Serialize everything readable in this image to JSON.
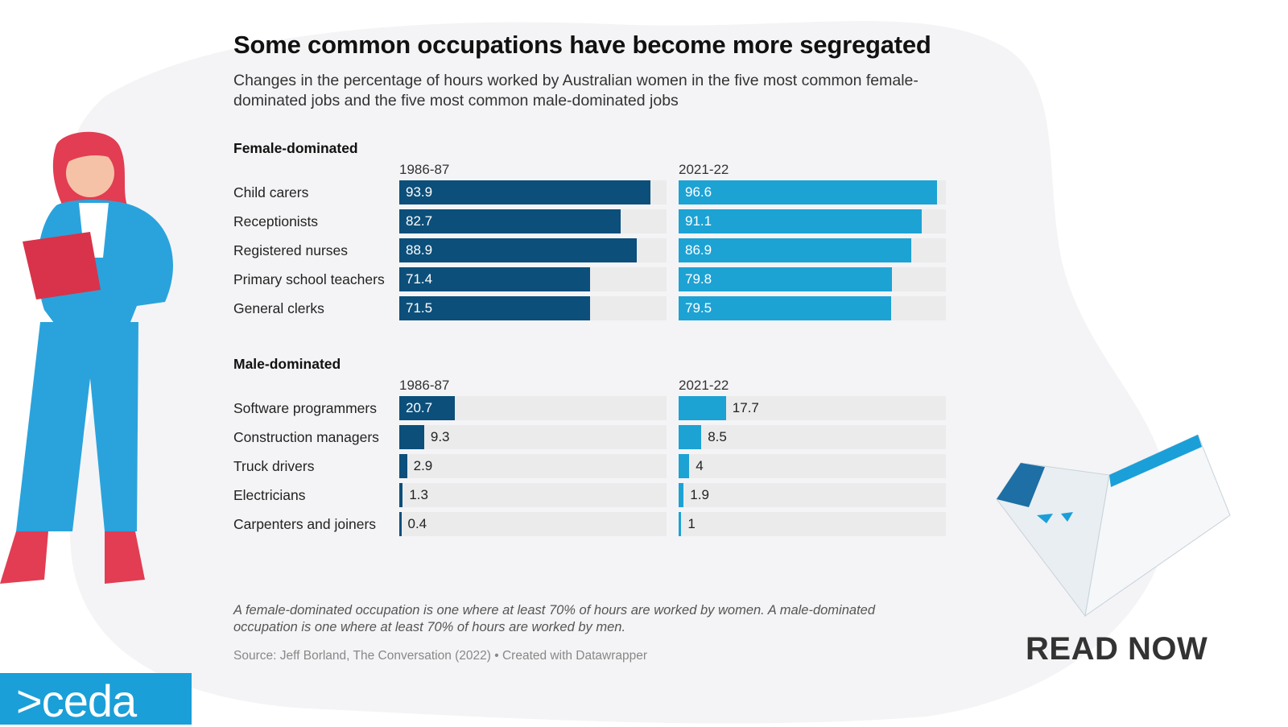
{
  "title": "Some common occupations have become more segregated",
  "subtitle": "Changes in the percentage of hours worked by Australian women in the five most common female-dominated jobs and the five most common male-dominated jobs",
  "footnote": "A female-dominated occupation is one where at least 70% of hours are worked by women. A male-dominated occupation is one where at least 70% of hours are worked by men.",
  "source": "Source: Jeff Borland, The Conversation (2022) • Created with Datawrapper",
  "brand": {
    "logo_text": ">ceda",
    "cta_label": "READ NOW"
  },
  "colors": {
    "dark_bar": "#0c4f7a",
    "light_bar": "#1da2d4",
    "track": "#ebebeb",
    "brand_blue": "#1a9fd8",
    "background_blob": "#f4f4f6"
  },
  "icons": {
    "left_figure": "woman-with-tablet-illustration",
    "right_figure": "open-report-magazine-illustration"
  },
  "chart_data": {
    "type": "bar",
    "orientation": "horizontal",
    "xlim": [
      0,
      100
    ],
    "unit": "percent",
    "columns": [
      "1986-87",
      "2021-22"
    ],
    "groups": [
      {
        "label": "Female-dominated",
        "categories": [
          "Child carers",
          "Receptionists",
          "Registered nurses",
          "Primary school teachers",
          "General clerks"
        ],
        "series": [
          {
            "name": "1986-87",
            "values": [
              93.9,
              82.7,
              88.9,
              71.4,
              71.5
            ]
          },
          {
            "name": "2021-22",
            "values": [
              96.6,
              91.1,
              86.9,
              79.8,
              79.5
            ]
          }
        ]
      },
      {
        "label": "Male-dominated",
        "categories": [
          "Software programmers",
          "Construction managers",
          "Truck drivers",
          "Electricians",
          "Carpenters and joiners"
        ],
        "series": [
          {
            "name": "1986-87",
            "values": [
              20.7,
              9.3,
              2.9,
              1.3,
              0.4
            ]
          },
          {
            "name": "2021-22",
            "values": [
              17.7,
              8.5,
              4,
              1.9,
              1
            ]
          }
        ]
      }
    ]
  }
}
